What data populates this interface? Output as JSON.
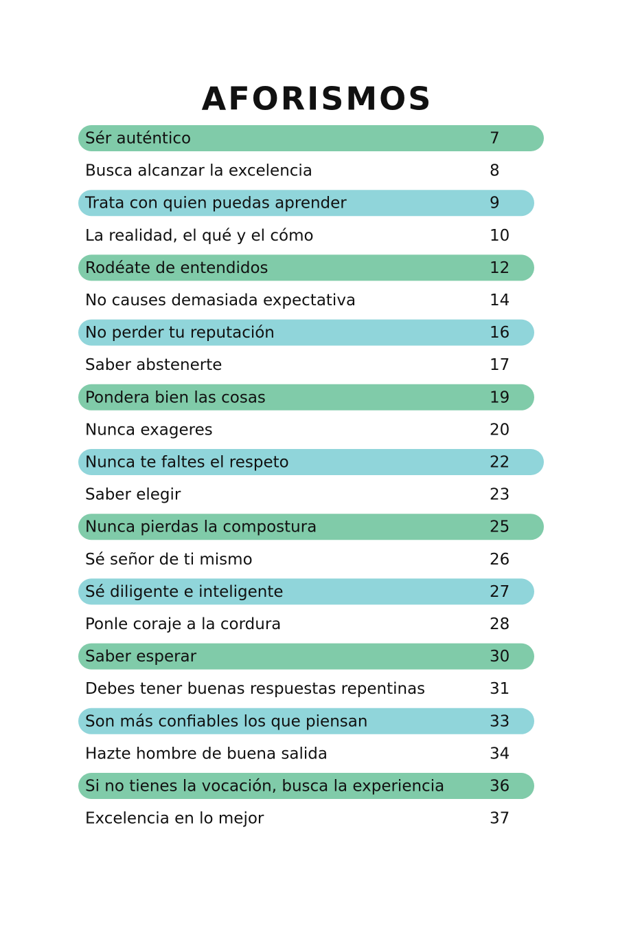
{
  "title": "AFORISMOS",
  "entries": [
    {
      "title": "Sér auténtico",
      "page": 7
    },
    {
      "title": "Busca alcanzar la excelencia",
      "page": 8
    },
    {
      "title": "Trata con quien puedas aprender",
      "page": 9
    },
    {
      "title": "La realidad, el qué y el cómo",
      "page": 10
    },
    {
      "title": "Rodéate de entendidos",
      "page": 12
    },
    {
      "title": "No causes demasiada expectativa",
      "page": 14
    },
    {
      "title": "No perder tu reputación",
      "page": 16
    },
    {
      "title": "Saber abstenerte",
      "page": 17
    },
    {
      "title": "Pondera bien las cosas",
      "page": 19
    },
    {
      "title": "Nunca exageres",
      "page": 20
    },
    {
      "title": "Nunca te faltes el respeto",
      "page": 22
    },
    {
      "title": "Saber elegir",
      "page": 23
    },
    {
      "title": "Nunca pierdas la compostura",
      "page": 25
    },
    {
      "title": "Sé señor de ti mismo",
      "page": 26
    },
    {
      "title": "Sé diligente e inteligente",
      "page": 27
    },
    {
      "title": "Ponle coraje a la cordura",
      "page": 28
    },
    {
      "title": "Saber esperar",
      "page": 30
    },
    {
      "title": "Debes tener buenas respuestas repentinas",
      "page": 31
    },
    {
      "title": "Son más confiables los que piensan",
      "page": 33
    },
    {
      "title": "Hazte hombre de buena salida",
      "page": 34
    },
    {
      "title": "Si no tienes la vocación, busca la experiencia",
      "page": 36
    },
    {
      "title": "Excelencia en lo mejor",
      "page": 37
    }
  ]
}
